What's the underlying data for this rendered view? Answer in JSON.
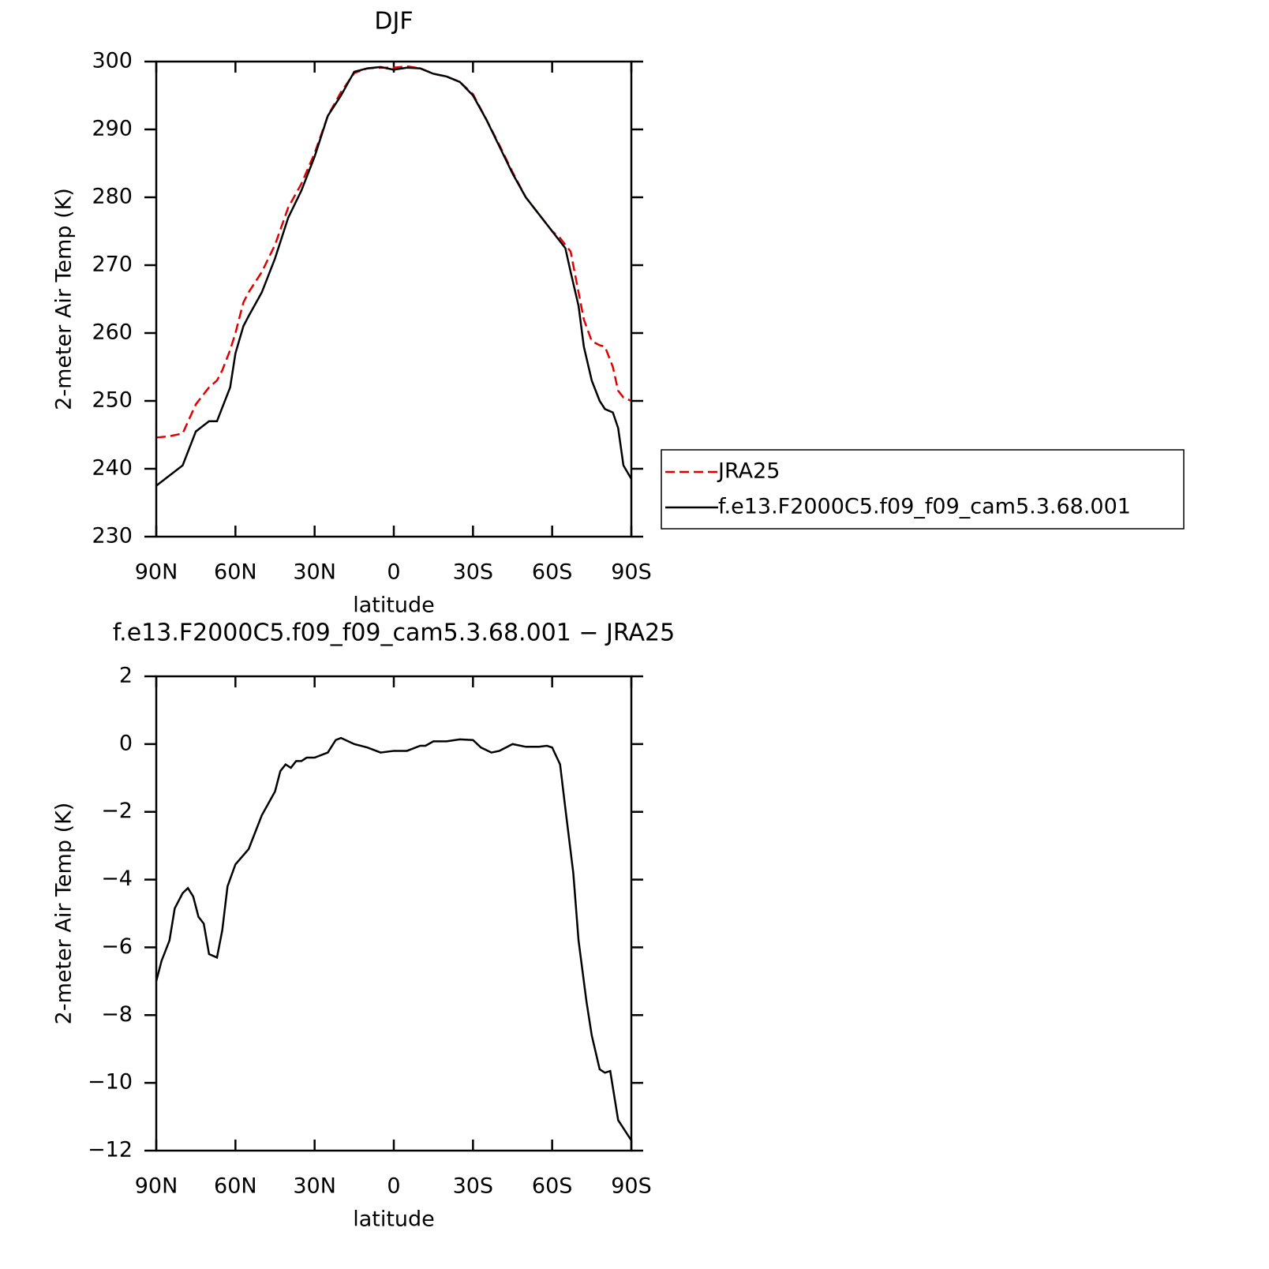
{
  "chart_data": [
    {
      "type": "line",
      "title": "DJF",
      "xlabel": "latitude",
      "ylabel": "2-meter Air Temp (K)",
      "x": [
        90,
        85,
        80,
        75,
        70,
        67,
        65,
        62,
        60,
        57,
        55,
        50,
        45,
        40,
        35,
        30,
        25,
        20,
        15,
        10,
        5,
        0,
        -5,
        -10,
        -15,
        -20,
        -25,
        -30,
        -35,
        -40,
        -45,
        -50,
        -55,
        -60,
        -63,
        -65,
        -67,
        -70,
        -72,
        -75,
        -78,
        -80,
        -83,
        -85,
        -87,
        -90
      ],
      "series": [
        {
          "name": "JRA25",
          "color": "#e00000",
          "linestyle": "dashed",
          "values": [
            244.6,
            244.8,
            245.2,
            249.5,
            252,
            253,
            254.5,
            257.5,
            260,
            264.5,
            266,
            269,
            273,
            278.5,
            282,
            286.5,
            292,
            295.5,
            298.3,
            299,
            299.1,
            299.1,
            299.3,
            299,
            298.2,
            297.8,
            297,
            295.2,
            291.5,
            287.7,
            283.7,
            280,
            277.5,
            275,
            274,
            273,
            272,
            266,
            262,
            258.8,
            258.2,
            258,
            255,
            251.5,
            250.5,
            250
          ]
        },
        {
          "name": "f.e13.F2000C5.f09_f09_cam5.3.68.001",
          "color": "#000000",
          "linestyle": "solid",
          "values": [
            237.5,
            239,
            240.5,
            245.5,
            247,
            247,
            249,
            252,
            257,
            261,
            262.5,
            266,
            271,
            277,
            281,
            286,
            292,
            295,
            298.5,
            299,
            299.2,
            298.8,
            299.1,
            299,
            298.2,
            297.8,
            297,
            295,
            291.5,
            287.5,
            283.5,
            280,
            277.5,
            275,
            273.5,
            272.5,
            269,
            264,
            258,
            253,
            250,
            248.8,
            248.3,
            246,
            240.5,
            238.5
          ]
        }
      ],
      "xlim": [
        90,
        -90
      ],
      "xticks": [
        {
          "value": 90,
          "label": "90N"
        },
        {
          "value": 60,
          "label": "60N"
        },
        {
          "value": 30,
          "label": "30N"
        },
        0,
        {
          "value": -30,
          "label": "30S"
        },
        {
          "value": -60,
          "label": "60S"
        },
        {
          "value": -90,
          "label": "90S"
        }
      ],
      "ylim": [
        230,
        300
      ],
      "yticks": [
        230,
        240,
        250,
        260,
        270,
        280,
        290,
        300
      ],
      "legend": "right"
    },
    {
      "type": "line",
      "title": "f.e13.F2000C5.f09_f09_cam5.3.68.001 − JRA25",
      "xlabel": "latitude",
      "ylabel": "2-meter Air Temp (K)",
      "x": [
        90,
        88,
        85,
        83,
        80,
        78,
        76,
        74,
        72,
        70,
        67,
        65,
        63,
        60,
        55,
        50,
        45,
        43,
        41,
        39,
        37,
        35,
        33,
        30,
        25,
        22,
        20,
        15,
        10,
        5,
        0,
        -5,
        -10,
        -12,
        -15,
        -20,
        -25,
        -30,
        -33,
        -37,
        -40,
        -45,
        -50,
        -55,
        -58,
        -60,
        -63,
        -65,
        -68,
        -70,
        -73,
        -75,
        -78,
        -80,
        -82,
        -85,
        -90
      ],
      "values": [
        -7,
        -6.4,
        -5.8,
        -4.85,
        -4.4,
        -4.25,
        -4.5,
        -5.1,
        -5.3,
        -6.2,
        -6.3,
        -5.5,
        -4.2,
        -3.55,
        -3.1,
        -2.1,
        -1.4,
        -0.8,
        -0.6,
        -0.7,
        -0.5,
        -0.5,
        -0.4,
        -0.4,
        -0.25,
        0.12,
        0.18,
        0,
        -0.1,
        -0.25,
        -0.2,
        -0.2,
        -0.05,
        -0.05,
        0.08,
        0.08,
        0.14,
        0.12,
        -0.1,
        -0.25,
        -0.2,
        0,
        -0.08,
        -0.08,
        -0.05,
        -0.1,
        -0.6,
        -1.9,
        -3.8,
        -5.8,
        -7.6,
        -8.6,
        -9.6,
        -9.7,
        -9.65,
        -11.1,
        -11.7
      ],
      "color": "#000000",
      "xlim": [
        90,
        -90
      ],
      "xticks": [
        {
          "value": 90,
          "label": "90N"
        },
        {
          "value": 60,
          "label": "60N"
        },
        {
          "value": 30,
          "label": "30N"
        },
        0,
        {
          "value": -30,
          "label": "30S"
        },
        {
          "value": -60,
          "label": "60S"
        },
        {
          "value": -90,
          "label": "90S"
        }
      ],
      "ylim": [
        -12,
        2
      ],
      "yticks": [
        {
          "value": -12,
          "label": "−12"
        },
        {
          "value": -10,
          "label": "−10"
        },
        {
          "value": -8,
          "label": "−8"
        },
        {
          "value": -6,
          "label": "−6"
        },
        {
          "value": -4,
          "label": "−4"
        },
        {
          "value": -2,
          "label": "−2"
        },
        0,
        2
      ]
    }
  ]
}
